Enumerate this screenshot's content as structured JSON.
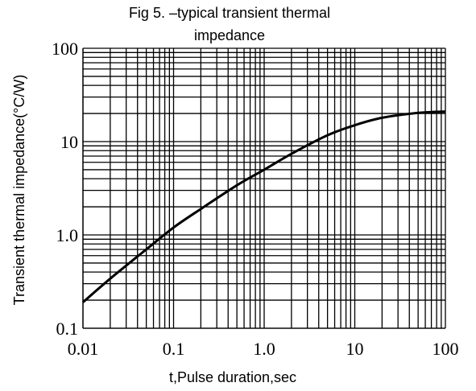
{
  "chart_data": {
    "type": "line",
    "title_line1": "Fig 5. –typical transient thermal",
    "title_line2": "impedance",
    "xlabel": "t,Pulse duration,sec",
    "ylabel": "Transient thermal impedance(°C/W)",
    "x_scale": "log",
    "y_scale": "log",
    "xlim": [
      0.01,
      100
    ],
    "ylim": [
      0.1,
      100
    ],
    "x_ticks": [
      "0.01",
      "0.1",
      "1.0",
      "10",
      "100"
    ],
    "y_ticks": [
      "0.1",
      "1.0",
      "10",
      "100"
    ],
    "grid": true,
    "series": [
      {
        "x": [
          0.01,
          0.02,
          0.05,
          0.1,
          0.2,
          0.5,
          1,
          2,
          5,
          10,
          20,
          50,
          100
        ],
        "values": [
          0.19,
          0.34,
          0.7,
          1.2,
          1.9,
          3.4,
          5,
          7.4,
          11.7,
          15,
          18,
          20.3,
          21
        ]
      }
    ]
  }
}
